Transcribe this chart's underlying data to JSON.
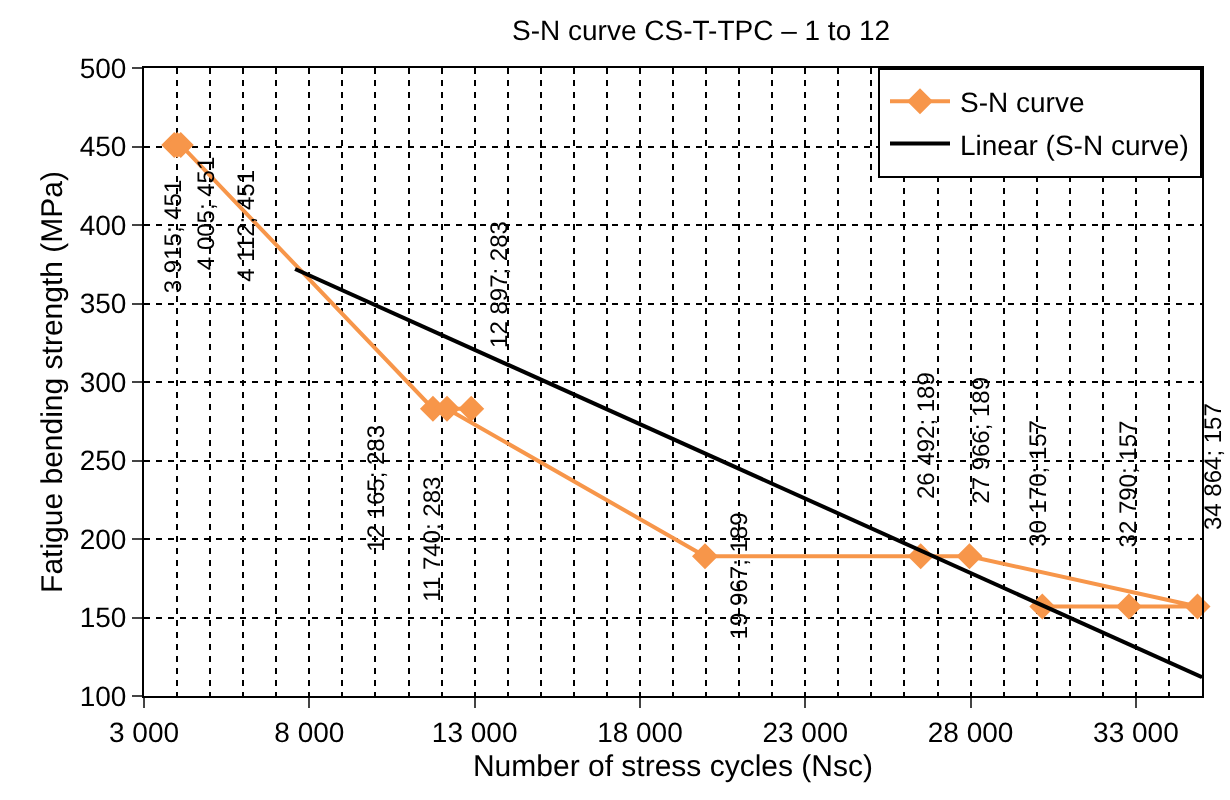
{
  "chart_data": {
    "type": "line",
    "title": "S-N curve CS-T-TPC – 1 to 12",
    "xlabel": "Number of stress cycles (Nsc)",
    "ylabel": "Fatigue bending strength (MPa)",
    "x": [
      3915,
      4005,
      4112,
      11740,
      12897,
      12165,
      19967,
      26492,
      27966,
      34864,
      32790,
      30170
    ],
    "series": [
      {
        "name": "S-N curve",
        "color": "#f7964a",
        "marker": "diamond",
        "values": [
          451,
          451,
          451,
          283,
          283,
          283,
          189,
          189,
          189,
          157,
          157,
          157
        ],
        "value_labels": [
          "3 915; 451",
          "4 005; 451",
          "4 112; 451",
          "11 740; 283",
          "12 897; 283",
          "12 165; 283",
          "19 967; 189",
          "26 492; 189",
          "27 966; 189",
          "34 864; 157",
          "32 790; 157",
          "30 170; 157"
        ]
      },
      {
        "name": "Linear (S-N curve)",
        "color": "#000000",
        "marker": "none",
        "x": [
          7570,
          35000
        ],
        "values": [
          372,
          112
        ]
      }
    ],
    "xlim": [
      3000,
      35000
    ],
    "xticks": [
      {
        "value": 3000,
        "label": "3 000"
      },
      {
        "value": 8000,
        "label": "8 000"
      },
      {
        "value": 13000,
        "label": "13 000"
      },
      {
        "value": 18000,
        "label": "18 000"
      },
      {
        "value": 23000,
        "label": "23 000"
      },
      {
        "value": 28000,
        "label": "28 000"
      },
      {
        "value": 33000,
        "label": "33 000"
      }
    ],
    "ylim": [
      100,
      500
    ],
    "yticks": [
      100,
      150,
      200,
      250,
      300,
      350,
      400,
      450,
      500
    ],
    "grid": true,
    "legend": "top right"
  }
}
